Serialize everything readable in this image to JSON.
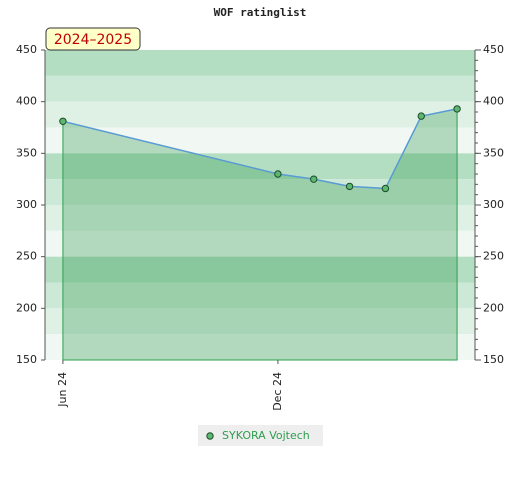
{
  "chart_data": {
    "type": "line",
    "title": "WOF ratinglist",
    "annotation": "2024–2025",
    "x": [
      0,
      6,
      7,
      8,
      9,
      10,
      11
    ],
    "xlim": [
      -0.5,
      11.5
    ],
    "xticks": [
      {
        "value": 0,
        "label": "Jun 24"
      },
      {
        "value": 6,
        "label": "Dec 24"
      }
    ],
    "series": [
      {
        "name": "SYKORA Vojtech",
        "color": "#5b9bd5",
        "values": [
          381,
          330,
          325,
          318,
          316,
          386,
          393
        ]
      }
    ],
    "ylim": [
      150,
      450
    ],
    "yticks": [
      150,
      200,
      250,
      300,
      350,
      400,
      450
    ],
    "y2lim": [
      150,
      450
    ],
    "y2ticks": [
      150,
      200,
      250,
      300,
      350,
      400,
      450
    ],
    "grid": true,
    "legend": "bottom"
  }
}
